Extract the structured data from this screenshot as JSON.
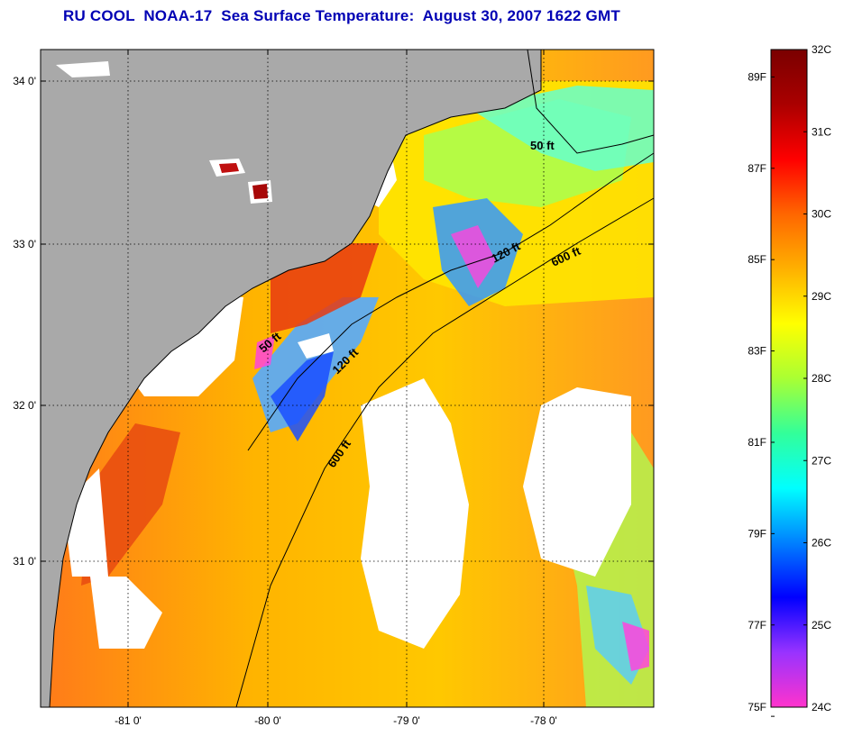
{
  "title": "RU COOL  NOAA-17  Sea Surface Temperature:  August 30, 2007 1622 GMT",
  "map": {
    "lon_ticks": [
      "-81 0'",
      "-80 0'",
      "-79 0'",
      "-78 0'"
    ],
    "lat_ticks": [
      "34 0'",
      "33 0'",
      "32 0'",
      "31 0'"
    ],
    "contours": [
      "50 ft",
      "120 ft",
      "600 ft"
    ],
    "contour_labels": [
      {
        "text": "50 ft",
        "contour": "50 ft"
      },
      {
        "text": "120 ft",
        "contour": "120 ft"
      },
      {
        "text": "600 ft",
        "contour": "600 ft"
      },
      {
        "text": "50 ft",
        "contour": "50 ft"
      },
      {
        "text": "120 ft",
        "contour": "120 ft"
      },
      {
        "text": "600 ft",
        "contour": "600 ft"
      }
    ],
    "colors": {
      "land": "#a9a9a9",
      "cloud": "#ffffff",
      "coastline": "#000000"
    }
  },
  "colorbar": {
    "celsius": [
      "32C",
      "31C",
      "30C",
      "29C",
      "28C",
      "27C",
      "26C",
      "25C",
      "24C"
    ],
    "fahrenheit": [
      "89F",
      "87F",
      "85F",
      "83F",
      "81F",
      "79F",
      "77F",
      "75F"
    ],
    "range_c": [
      24,
      32
    ],
    "palette": [
      "#ff33cc",
      "#9933ff",
      "#0000ff",
      "#0080ff",
      "#00ffff",
      "#33ff99",
      "#aaff33",
      "#ffff00",
      "#ffb000",
      "#ff6600",
      "#ff0000",
      "#aa0000",
      "#7a0000"
    ]
  }
}
